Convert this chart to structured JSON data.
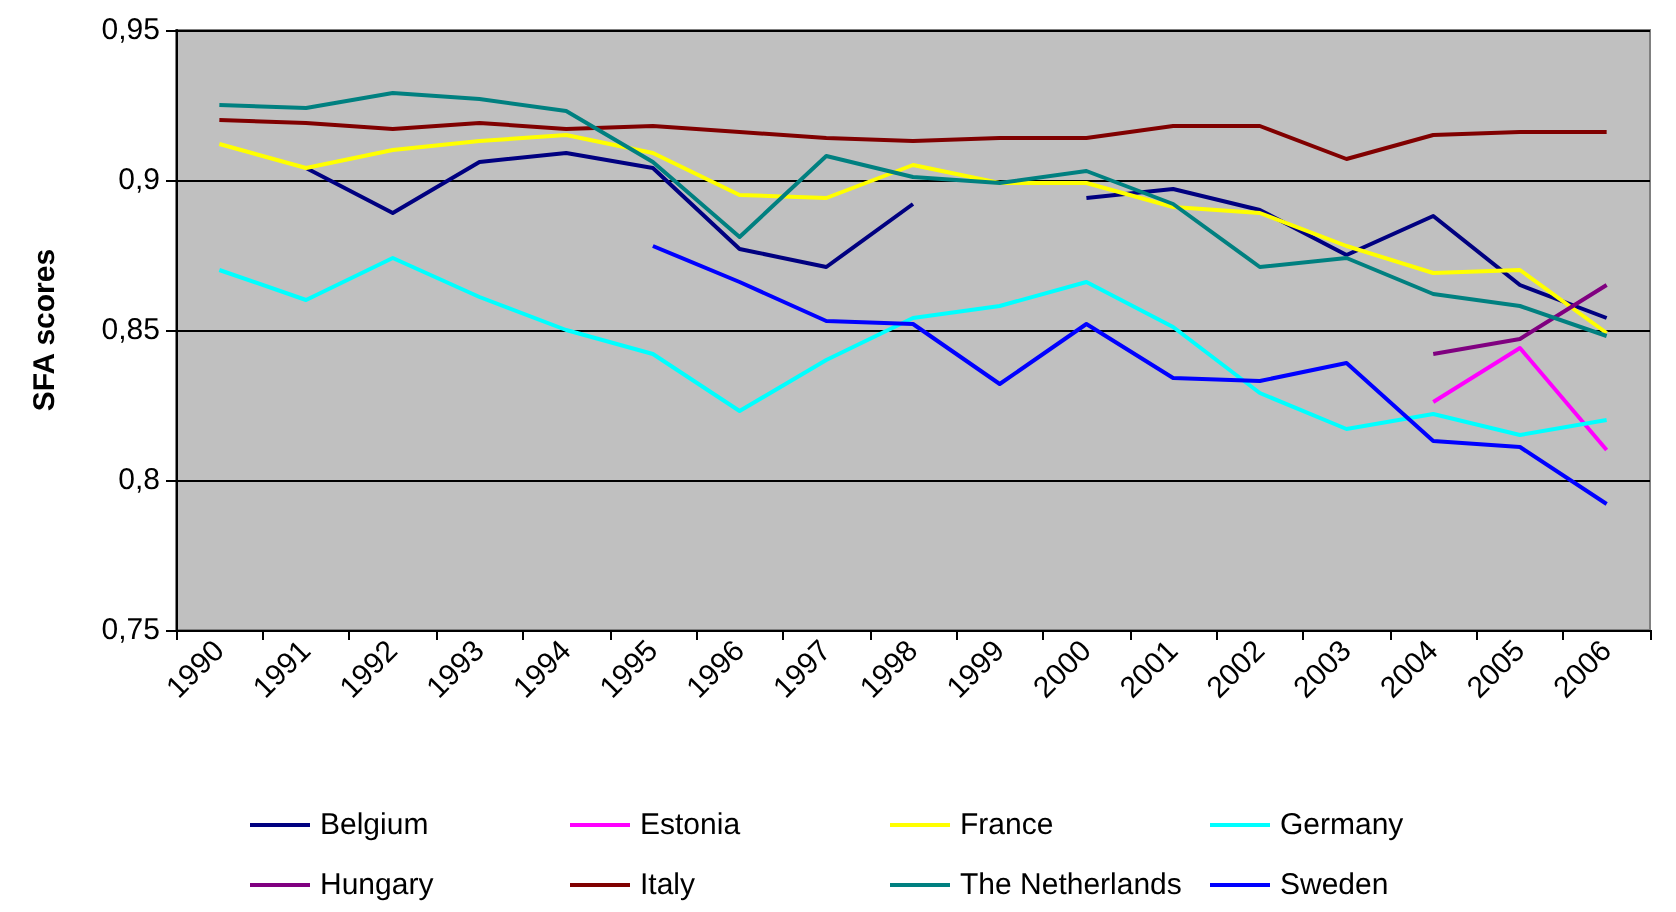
{
  "chart_data": {
    "type": "line",
    "ylabel": "SFA scores",
    "categories": [
      "1990",
      "1991",
      "1992",
      "1993",
      "1994",
      "1995",
      "1996",
      "1997",
      "1998",
      "1999",
      "2000",
      "2001",
      "2002",
      "2003",
      "2004",
      "2005",
      "2006"
    ],
    "ylim": [
      0.75,
      0.95
    ],
    "yticks": [
      {
        "value": 0.75,
        "label": "0,75"
      },
      {
        "value": 0.8,
        "label": "0,8"
      },
      {
        "value": 0.85,
        "label": "0,85"
      },
      {
        "value": 0.9,
        "label": "0,9"
      },
      {
        "value": 0.95,
        "label": "0,95"
      }
    ],
    "grid": "y",
    "legend": "bottom",
    "marker": "none",
    "series": [
      {
        "name": "Belgium",
        "color": "#000080",
        "values": [
          null,
          0.904,
          0.889,
          0.906,
          0.909,
          0.904,
          0.877,
          0.871,
          0.892,
          null,
          0.894,
          0.897,
          0.89,
          0.875,
          0.888,
          0.865,
          0.854
        ]
      },
      {
        "name": "Estonia",
        "color": "#ff00ff",
        "values": [
          null,
          null,
          null,
          null,
          null,
          null,
          null,
          null,
          null,
          null,
          null,
          null,
          null,
          null,
          0.826,
          0.844,
          0.81
        ]
      },
      {
        "name": "France",
        "color": "#ffff00",
        "values": [
          0.912,
          0.904,
          0.91,
          0.913,
          0.915,
          0.909,
          0.895,
          0.894,
          0.905,
          0.899,
          0.899,
          0.891,
          0.889,
          0.878,
          0.869,
          0.87,
          0.849
        ]
      },
      {
        "name": "Germany",
        "color": "#00ffff",
        "values": [
          0.87,
          0.86,
          0.874,
          0.861,
          0.85,
          0.842,
          0.823,
          0.84,
          0.854,
          0.858,
          0.866,
          0.851,
          0.829,
          0.817,
          0.822,
          0.815,
          0.82
        ]
      },
      {
        "name": "Hungary",
        "color": "#800080",
        "values": [
          null,
          null,
          null,
          null,
          null,
          null,
          null,
          null,
          null,
          null,
          null,
          null,
          null,
          null,
          0.842,
          0.847,
          0.865
        ]
      },
      {
        "name": "Italy",
        "color": "#800000",
        "values": [
          0.92,
          0.919,
          0.917,
          0.919,
          0.917,
          0.918,
          0.916,
          0.914,
          0.913,
          0.914,
          0.914,
          0.918,
          0.918,
          0.907,
          0.915,
          0.916,
          0.916
        ]
      },
      {
        "name": "The Netherlands",
        "color": "#008080",
        "values": [
          0.925,
          0.924,
          0.929,
          0.927,
          0.923,
          0.906,
          0.881,
          0.908,
          0.901,
          0.899,
          0.903,
          0.892,
          0.871,
          0.874,
          0.862,
          0.858,
          0.848
        ]
      },
      {
        "name": "Sweden",
        "color": "#0000ff",
        "values": [
          null,
          null,
          null,
          null,
          null,
          0.878,
          0.866,
          0.853,
          0.852,
          0.832,
          0.852,
          0.834,
          0.833,
          0.839,
          0.813,
          0.811,
          0.792
        ]
      }
    ]
  }
}
